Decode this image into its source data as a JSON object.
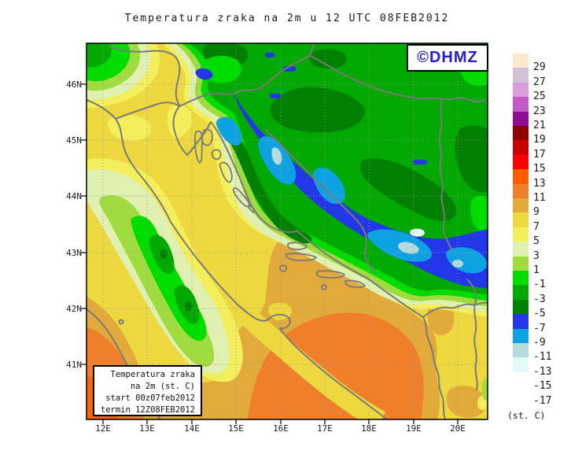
{
  "title": "Temperatura zraka na 2m u 12 UTC 08FEB2012",
  "watermark": {
    "label": "©DHMZ"
  },
  "legend_box": {
    "lines": [
      "Temperatura zraka",
      "na 2m (st. C)",
      "start 00z07feb2012",
      "termin 12Z08FEB2012"
    ]
  },
  "axes": {
    "lat_labels": [
      "46N",
      "45N",
      "44N",
      "43N",
      "42N",
      "41N"
    ],
    "lon_labels": [
      "12E",
      "13E",
      "14E",
      "15E",
      "16E",
      "17E",
      "18E",
      "19E",
      "20E"
    ]
  },
  "colorbar": {
    "unit_label": "(st. C)",
    "entries": [
      {
        "value": "29",
        "color": "#FFE9CE"
      },
      {
        "value": "27",
        "color": "#D2C2D8"
      },
      {
        "value": "25",
        "color": "#DB9EDB"
      },
      {
        "value": "23",
        "color": "#C25BC9"
      },
      {
        "value": "21",
        "color": "#8E0C92"
      },
      {
        "value": "19",
        "color": "#8C0000"
      },
      {
        "value": "17",
        "color": "#C80000"
      },
      {
        "value": "15",
        "color": "#FF0000"
      },
      {
        "value": "13",
        "color": "#FB5C00"
      },
      {
        "value": "11",
        "color": "#EF7F2A"
      },
      {
        "value": "9",
        "color": "#E2A93B"
      },
      {
        "value": "7",
        "color": "#EDD93F"
      },
      {
        "value": "5",
        "color": "#F2EE5C"
      },
      {
        "value": "3",
        "color": "#DFF0B0"
      },
      {
        "value": "1",
        "color": "#A0DC40"
      },
      {
        "value": "-1",
        "color": "#00DC00"
      },
      {
        "value": "-3",
        "color": "#00A800"
      },
      {
        "value": "-5",
        "color": "#008000"
      },
      {
        "value": "-7",
        "color": "#2238E8"
      },
      {
        "value": "-9",
        "color": "#0FA2E2"
      },
      {
        "value": "-11",
        "color": "#B5DBDE"
      },
      {
        "value": "-13",
        "color": "#E4FAFA"
      },
      {
        "value": "-15",
        "color": "#FFFFFF"
      },
      {
        "value": "-17",
        "color": null
      }
    ]
  }
}
